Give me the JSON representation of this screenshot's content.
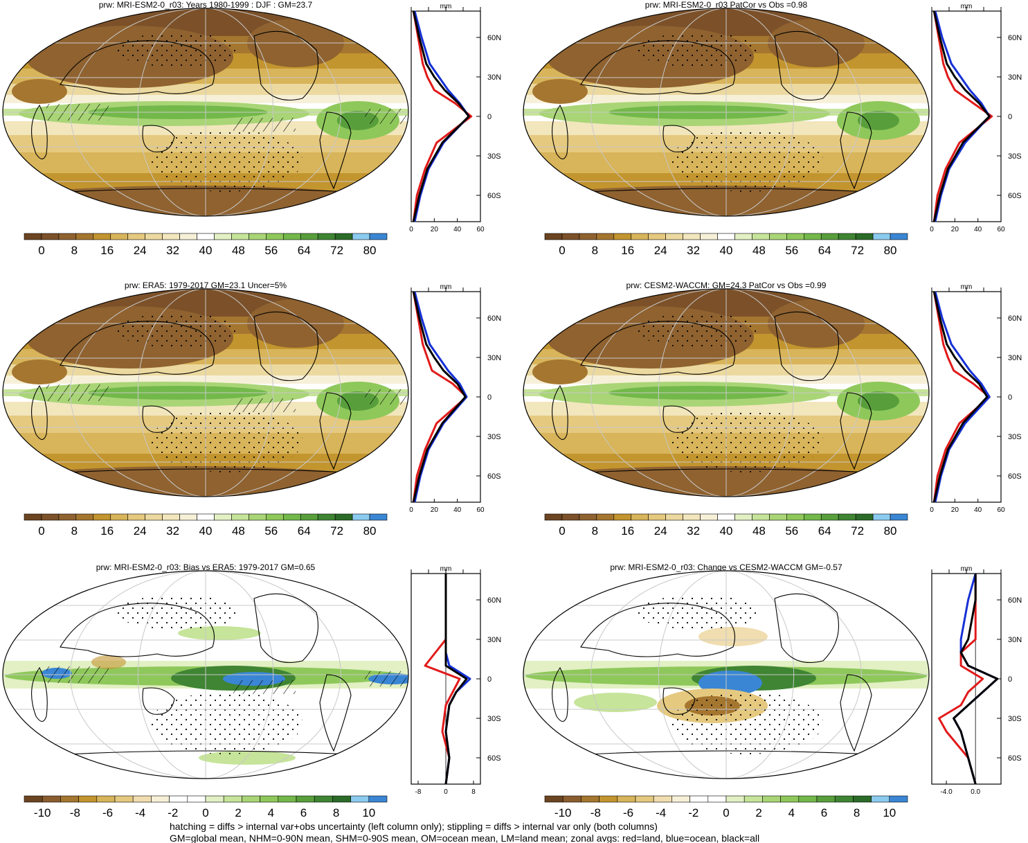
{
  "colors": {
    "abs_scale": [
      "#6b4421",
      "#7c5129",
      "#8f6230",
      "#a5762f",
      "#c3952f",
      "#d8b45a",
      "#e5c97f",
      "#ecd9a0",
      "#f2e6bd",
      "#f7f0d8",
      "#ffffff",
      "#e2f0c4",
      "#c6e49a",
      "#a9d576",
      "#8ec85a",
      "#73b84a",
      "#589f3c",
      "#3f8533",
      "#2b6b28",
      "#8ccbf0",
      "#3a86d4"
    ],
    "diff_scale": [
      "#6b4421",
      "#8a5d2f",
      "#a5762f",
      "#c3952f",
      "#d8b45a",
      "#e5c97f",
      "#f0ddb0",
      "#f7f0d8",
      "#ffffff",
      "#ffffff",
      "#e2f0c4",
      "#c6e49a",
      "#a9d576",
      "#8ec85a",
      "#73b84a",
      "#589f3c",
      "#3f8533",
      "#2b6b28",
      "#8ccbf0",
      "#3a86d4"
    ],
    "land": "#e11a1a",
    "ocean": "#1530d6",
    "all": "#000000",
    "grid": "#c8c8c8"
  },
  "panels": [
    {
      "id": "p1",
      "title": "prw: MRI-ESM2-0_r03: Years 1980-1999 : DJF : GM=23.7",
      "kind": "abs",
      "colorbar_labels": [
        "0",
        "8",
        "16",
        "24",
        "32",
        "40",
        "48",
        "56",
        "64",
        "72",
        "80"
      ],
      "profile_xticks": [
        "0",
        "20",
        "40",
        "60"
      ],
      "profile_xlim": [
        0,
        60
      ],
      "hatched": true,
      "stippled": true
    },
    {
      "id": "p2",
      "title": "prw: MRI-ESM2-0_r03 PatCor vs Obs =0.98",
      "kind": "abs",
      "colorbar_labels": [
        "0",
        "8",
        "16",
        "24",
        "32",
        "40",
        "48",
        "56",
        "64",
        "72",
        "80"
      ],
      "profile_xticks": [
        "0",
        "20",
        "40",
        "60"
      ],
      "profile_xlim": [
        0,
        60
      ],
      "hatched": false,
      "stippled": true
    },
    {
      "id": "p3",
      "title": "prw: ERA5: 1979-2017 GM=23.1 Uncer=5%",
      "kind": "abs",
      "colorbar_labels": [
        "0",
        "8",
        "16",
        "24",
        "32",
        "40",
        "48",
        "56",
        "64",
        "72",
        "80"
      ],
      "profile_xticks": [
        "0",
        "20",
        "40",
        "60"
      ],
      "profile_xlim": [
        0,
        60
      ],
      "hatched": true,
      "stippled": true
    },
    {
      "id": "p4",
      "title": "prw: CESM2-WACCM: GM=24.3 PatCor vs Obs =0.99",
      "kind": "abs",
      "colorbar_labels": [
        "0",
        "8",
        "16",
        "24",
        "32",
        "40",
        "48",
        "56",
        "64",
        "72",
        "80"
      ],
      "profile_xticks": [
        "0",
        "20",
        "40",
        "60"
      ],
      "profile_xlim": [
        0,
        60
      ],
      "hatched": false,
      "stippled": true
    },
    {
      "id": "p5",
      "title": "prw: MRI-ESM2-0_r03: Bias vs ERA5: 1979-2017 GM=0.65",
      "kind": "diff",
      "colorbar_labels": [
        "-10",
        "-8",
        "-6",
        "-4",
        "-2",
        "0",
        "2",
        "4",
        "6",
        "8",
        "10"
      ],
      "profile_xticks": [
        "-8",
        "0",
        "8"
      ],
      "profile_xlim": [
        -10,
        10
      ],
      "hatched": true,
      "stippled": true
    },
    {
      "id": "p6",
      "title": "prw: MRI-ESM2-0_r03: Change vs CESM2-WACCM GM=-0.57",
      "kind": "diff",
      "colorbar_labels": [
        "-10",
        "-8",
        "-6",
        "-4",
        "-2",
        "0",
        "2",
        "4",
        "6",
        "8",
        "10"
      ],
      "profile_xticks": [
        "-4.0",
        "0.0"
      ],
      "profile_xlim": [
        -6,
        3.5
      ],
      "hatched": false,
      "stippled": true
    }
  ],
  "profile_unit": "mm",
  "lat_labels": [
    "60N",
    "30N",
    "0",
    "30S",
    "60S"
  ],
  "chart_data": [
    {
      "type": "line",
      "panel": "p1",
      "ylabel": "",
      "y_lat": [
        -80,
        -60,
        -40,
        -20,
        0,
        10,
        20,
        30,
        40,
        60,
        80
      ],
      "series": [
        {
          "name": "",
          "color": "land",
          "values": [
            2,
            5,
            12,
            22,
            52,
            38,
            20,
            14,
            10,
            6,
            2
          ]
        },
        {
          "name": "",
          "color": "ocean",
          "values": [
            3,
            8,
            15,
            28,
            50,
            42,
            32,
            24,
            16,
            9,
            3
          ]
        },
        {
          "name": "",
          "color": "all",
          "values": [
            2,
            7,
            14,
            27,
            50,
            41,
            29,
            20,
            13,
            7,
            2
          ]
        }
      ]
    },
    {
      "type": "line",
      "panel": "p2",
      "y_lat": [
        -80,
        -60,
        -40,
        -20,
        0,
        10,
        20,
        30,
        40,
        60,
        80
      ],
      "series": [
        {
          "name": "",
          "color": "land",
          "values": [
            2,
            5,
            12,
            24,
            52,
            36,
            20,
            14,
            10,
            6,
            2
          ]
        },
        {
          "name": "",
          "color": "ocean",
          "values": [
            3,
            8,
            15,
            29,
            50,
            43,
            33,
            25,
            17,
            9,
            3
          ]
        },
        {
          "name": "",
          "color": "all",
          "values": [
            2,
            7,
            14,
            27,
            50,
            41,
            29,
            20,
            13,
            7,
            2
          ]
        }
      ]
    },
    {
      "type": "line",
      "panel": "p3",
      "y_lat": [
        -80,
        -60,
        -40,
        -20,
        0,
        10,
        20,
        30,
        40,
        60,
        80
      ],
      "series": [
        {
          "name": "",
          "color": "land",
          "values": [
            2,
            5,
            12,
            22,
            48,
            36,
            18,
            14,
            10,
            6,
            2
          ]
        },
        {
          "name": "",
          "color": "ocean",
          "values": [
            3,
            8,
            15,
            28,
            48,
            42,
            32,
            24,
            16,
            9,
            3
          ]
        },
        {
          "name": "",
          "color": "all",
          "values": [
            2,
            7,
            14,
            27,
            47,
            40,
            28,
            20,
            13,
            7,
            2
          ]
        }
      ]
    },
    {
      "type": "line",
      "panel": "p4",
      "y_lat": [
        -80,
        -60,
        -40,
        -20,
        0,
        10,
        20,
        30,
        40,
        60,
        80
      ],
      "series": [
        {
          "name": "",
          "color": "land",
          "values": [
            2,
            5,
            12,
            24,
            50,
            36,
            19,
            14,
            10,
            6,
            2
          ]
        },
        {
          "name": "",
          "color": "ocean",
          "values": [
            3,
            8,
            15,
            29,
            50,
            43,
            33,
            25,
            17,
            9,
            3
          ]
        },
        {
          "name": "",
          "color": "all",
          "values": [
            2,
            7,
            14,
            27,
            48,
            41,
            29,
            20,
            13,
            7,
            2
          ]
        }
      ]
    },
    {
      "type": "line",
      "panel": "p5",
      "y_lat": [
        -80,
        -60,
        -40,
        -20,
        -10,
        0,
        10,
        20,
        30,
        60,
        80
      ],
      "series": [
        {
          "name": "",
          "color": "land",
          "values": [
            0,
            1,
            -1,
            0,
            2,
            4,
            -6,
            -3,
            0,
            0,
            0
          ]
        },
        {
          "name": "",
          "color": "ocean",
          "values": [
            0,
            1,
            0,
            1,
            3,
            7,
            1,
            0,
            0,
            0,
            0
          ]
        },
        {
          "name": "",
          "color": "all",
          "values": [
            0,
            1,
            0,
            1,
            3,
            6,
            0,
            0,
            0,
            0,
            0
          ]
        }
      ]
    },
    {
      "type": "line",
      "panel": "p6",
      "y_lat": [
        -80,
        -60,
        -40,
        -30,
        -20,
        -10,
        0,
        10,
        20,
        30,
        60,
        80
      ],
      "series": [
        {
          "name": "",
          "color": "land",
          "values": [
            0,
            -1,
            -4,
            -5,
            -2,
            -1,
            1,
            -2,
            -2,
            0,
            0,
            0
          ]
        },
        {
          "name": "",
          "color": "ocean",
          "values": [
            0,
            -1,
            -2,
            -3,
            -1,
            1,
            3,
            -1,
            -2,
            -2,
            -1,
            0
          ]
        },
        {
          "name": "",
          "color": "all",
          "values": [
            0,
            -1,
            -2,
            -3,
            -1,
            1,
            3,
            -1,
            -2,
            -1,
            0,
            0
          ]
        }
      ]
    }
  ],
  "footer": [
    "hatching = diffs > internal var+obs uncertainty (left column only); stippling = diffs > internal var only (both columns)",
    "GM=global mean, NHM=0-90N mean, SHM=0-90S mean, OM=ocean mean, LM=land mean; zonal avgs: red=land, blue=ocean, black=all"
  ]
}
